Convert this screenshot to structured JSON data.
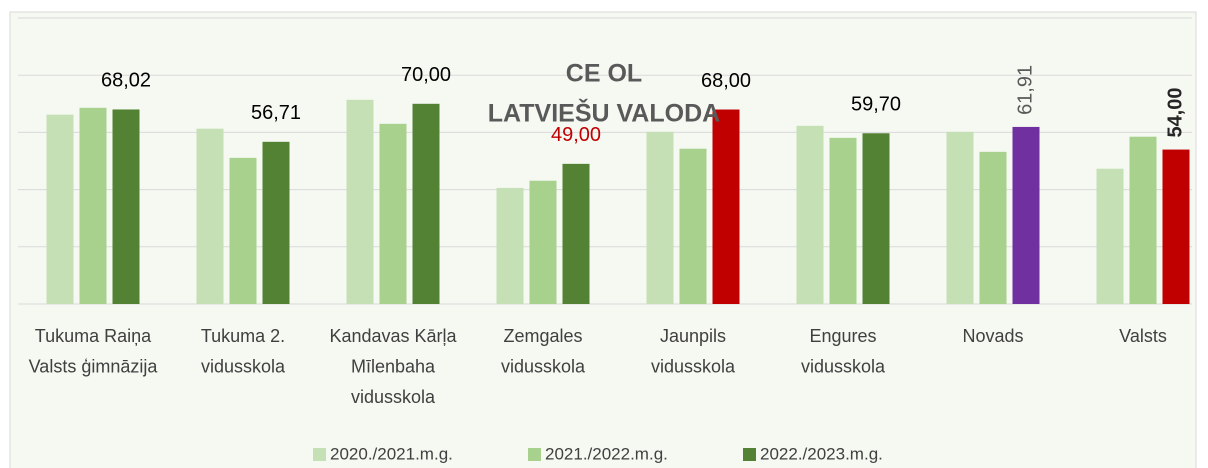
{
  "chart_data": {
    "type": "bar",
    "title": "CE OL",
    "subtitle": "LATVIEŠU VALODA",
    "categories": [
      "Tukuma Raiņa Valsts ģimnāzija",
      "Tukuma 2. vidusskola",
      "Kandavas Kārļa Mīlenbaha vidusskola",
      "Zemgales vidusskola",
      "Jaunpils vidusskola",
      "Engures vidusskola",
      "Novads",
      "Valsts"
    ],
    "series": [
      {
        "name": "2020./2021.m.g.",
        "color": "#c5e0b4",
        "values": [
          66.2,
          61.3,
          71.4,
          40.6,
          60.2,
          62.3,
          60.2,
          47.3
        ]
      },
      {
        "name": "2021./2022.m.g.",
        "color": "#a9d18e",
        "values": [
          68.6,
          51.1,
          63.0,
          43.1,
          54.3,
          58.1,
          53.2,
          58.5
        ]
      },
      {
        "name": "2022./2023.m.g.",
        "color": "#548235",
        "values": [
          68.02,
          56.71,
          70.0,
          49.0,
          68.0,
          59.7,
          61.91,
          54.0
        ],
        "value_labels": [
          "68,02",
          "56,71",
          "70,00",
          "49,00",
          "68,00",
          "59,70",
          "61,91",
          "54,00"
        ],
        "colors": [
          "#548235",
          "#548235",
          "#548235",
          "#548235",
          "#c00000",
          "#548235",
          "#7030a0",
          "#c00000"
        ]
      }
    ],
    "ylim": [
      0,
      100
    ],
    "yticks": [
      0,
      20,
      40,
      60,
      80,
      100
    ],
    "grid": true,
    "legend": "bottom"
  }
}
